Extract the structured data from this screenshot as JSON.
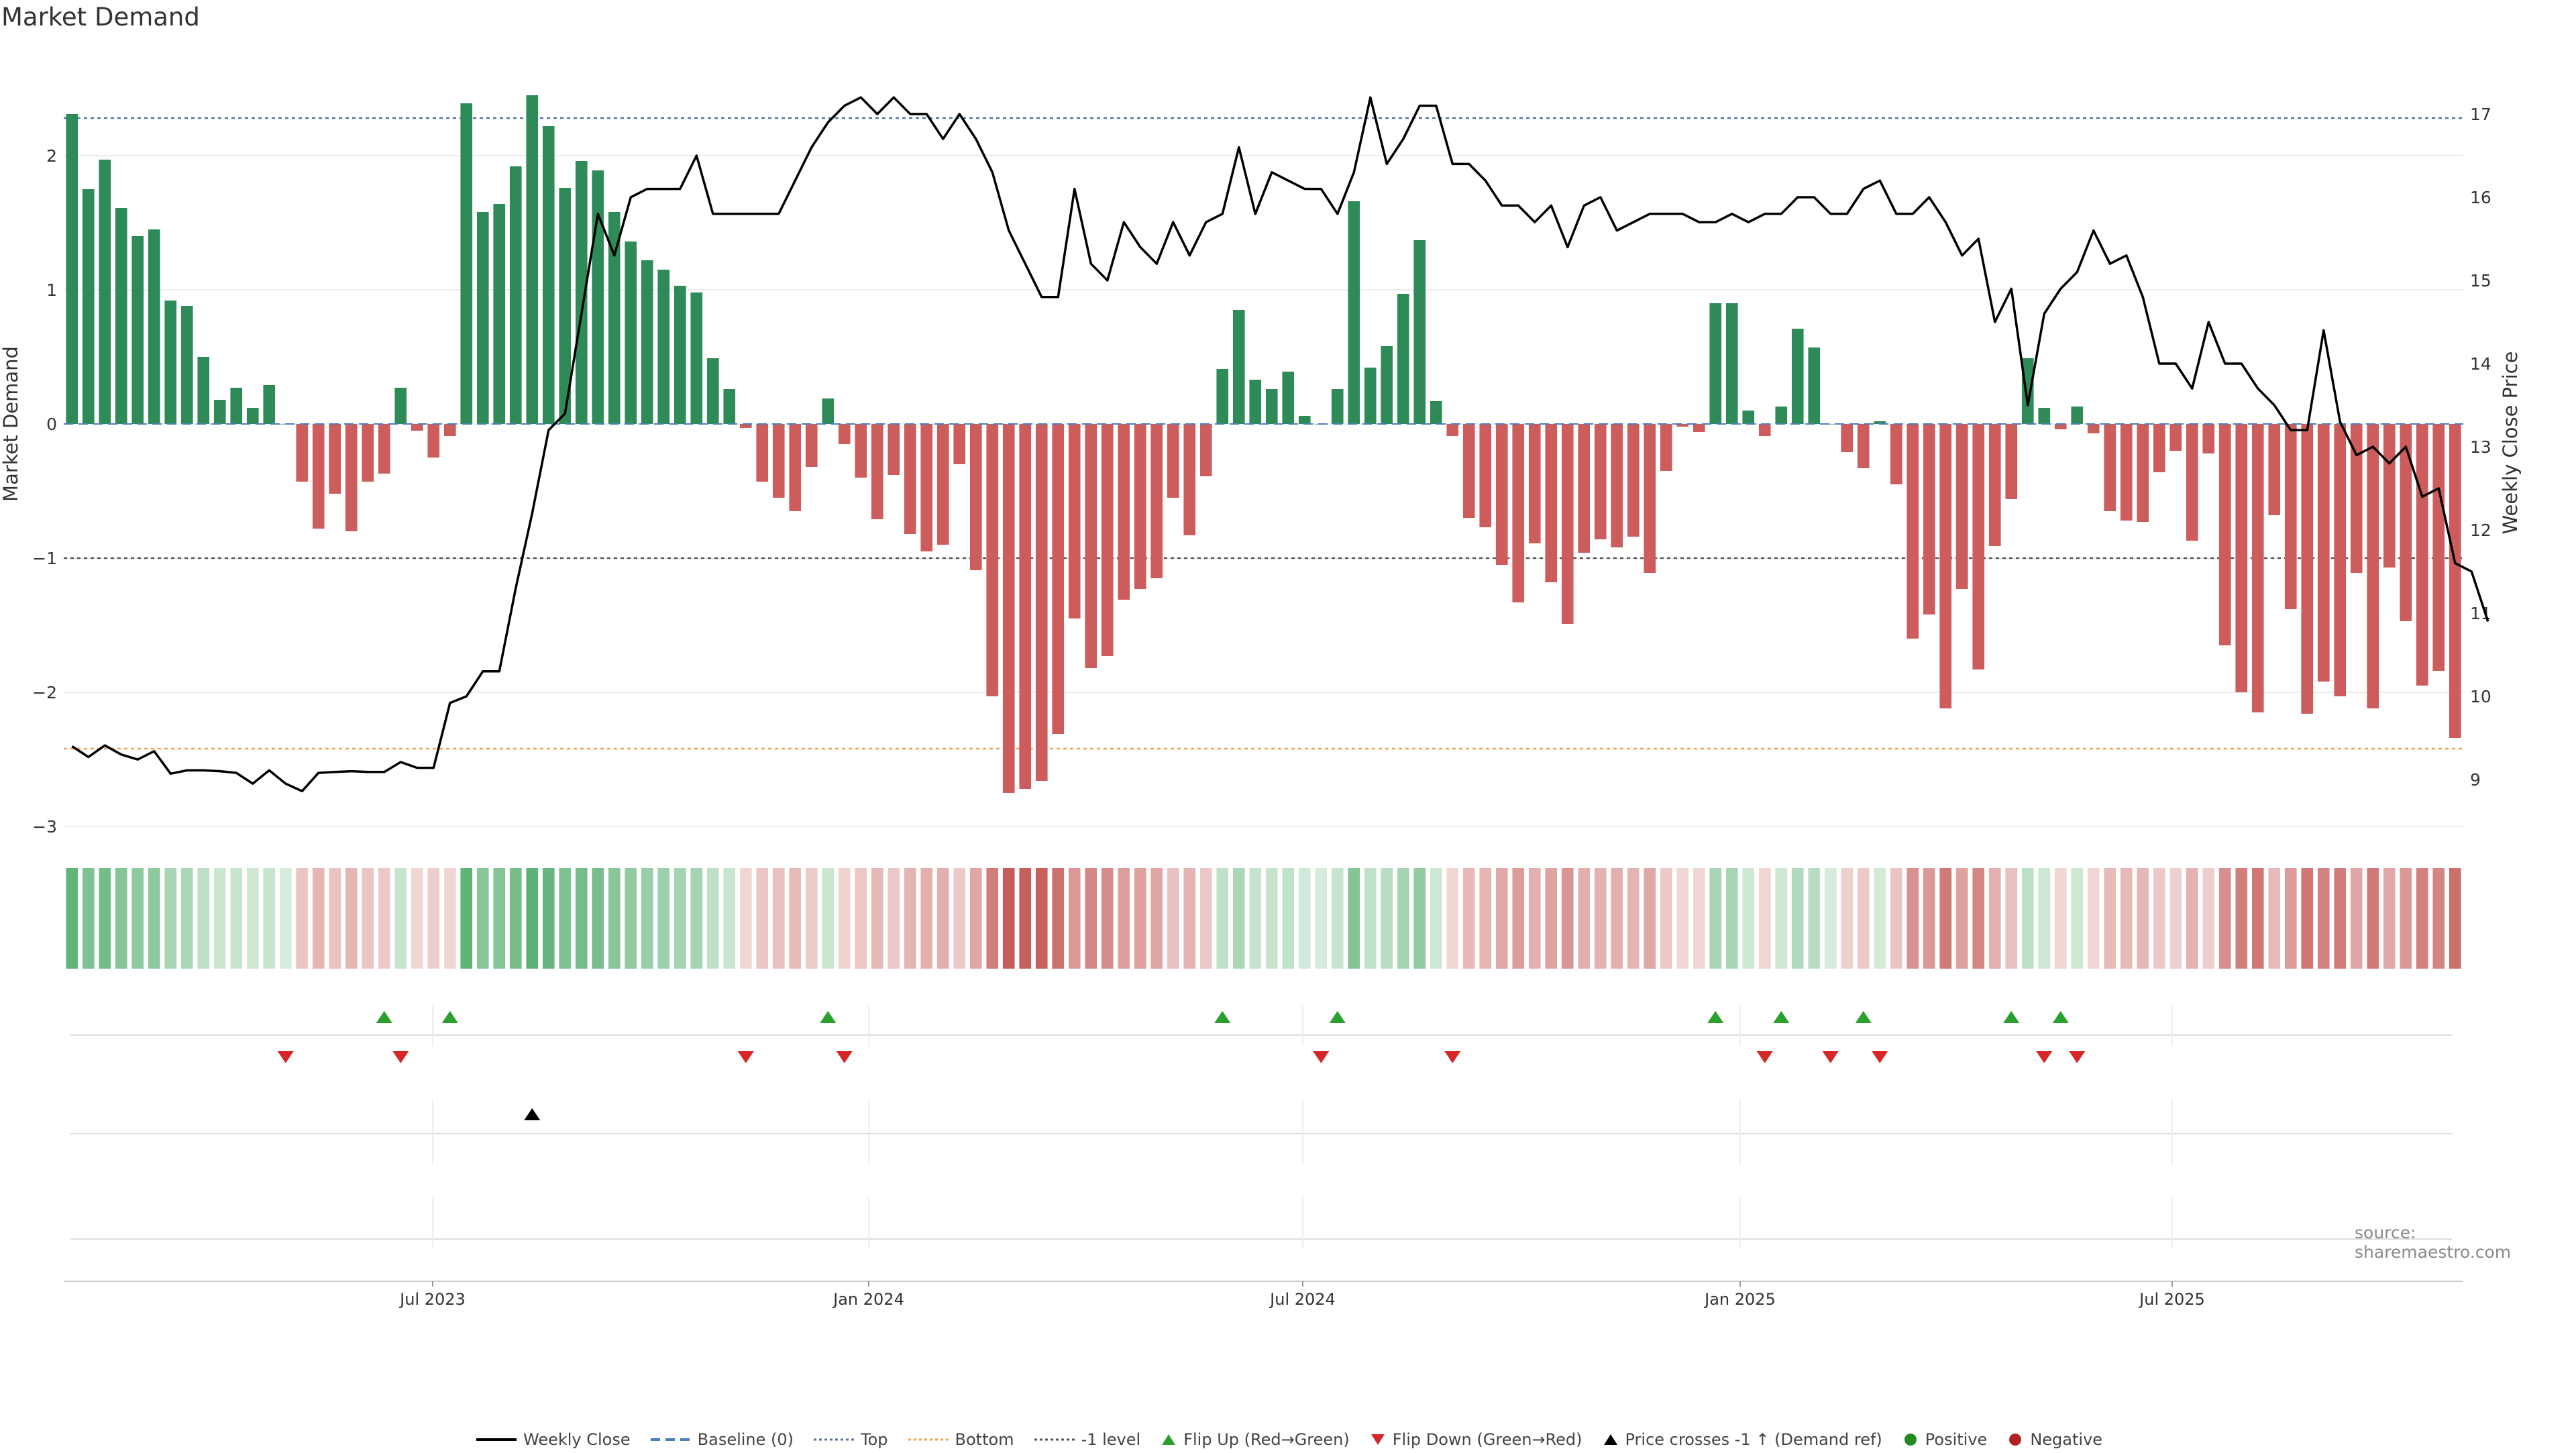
{
  "title": "Market Demand",
  "source": "source: sharemaestro.com",
  "colors": {
    "positive": "#2e8b57",
    "negative": "#cd5c5c",
    "price": "#000000",
    "top": "#5a6fa0",
    "bottom": "#f0a050",
    "minus1": "#555555",
    "flip_up": "#2ca02c",
    "flip_down": "#d62728",
    "cross": "#000000",
    "dot_pos": "#228b22",
    "dot_neg": "#b22222"
  },
  "legend": [
    {
      "label": "Weekly Close",
      "kind": "line-solid",
      "color": "#000000"
    },
    {
      "label": "Baseline (0)",
      "kind": "line-dash",
      "color": "#4a7fbf"
    },
    {
      "label": "Top",
      "kind": "line-dot",
      "color": "#5a6fa0"
    },
    {
      "label": "Bottom",
      "kind": "line-dot",
      "color": "#f0a050"
    },
    {
      "label": "-1 level",
      "kind": "line-dot",
      "color": "#555555"
    },
    {
      "label": "Flip Up (Red→Green)",
      "kind": "tri-up",
      "color": "#2ca02c"
    },
    {
      "label": "Flip Down (Green→Red)",
      "kind": "tri-down",
      "color": "#d62728"
    },
    {
      "label": "Price crosses -1 ↑ (Demand ref)",
      "kind": "tri-up",
      "color": "#000000"
    },
    {
      "label": "Positive",
      "kind": "dot",
      "color": "#228b22"
    },
    {
      "label": "Negative",
      "kind": "dot",
      "color": "#b22222"
    }
  ],
  "chart_data": {
    "type": "bar",
    "ylabel": "Market Demand",
    "y2label": "Weekly Close Price",
    "ylim": [
      -3,
      2.5
    ],
    "y2lim": [
      8.5,
      17.8
    ],
    "yticks": [
      "2",
      "1",
      "0",
      "−1",
      "−2",
      "−3"
    ],
    "y2ticks": [
      "17",
      "16",
      "15",
      "14",
      "13",
      "12",
      "11",
      "10",
      "9"
    ],
    "xticks": [
      "Jul 2023",
      "Jan 2024",
      "Jul 2024",
      "Jan 2025",
      "Jul 2025"
    ],
    "reference_lines": {
      "top": 2.28,
      "bottom": -2.42,
      "minus1": -1,
      "price_level_17": 17
    },
    "series": [
      {
        "name": "Weekly Close",
        "type": "line",
        "values": [
          9.4,
          9.27,
          9.41,
          9.3,
          9.24,
          9.34,
          9.07,
          9.11,
          9.11,
          9.1,
          9.08,
          8.95,
          9.11,
          8.95,
          8.86,
          9.08,
          9.09,
          9.1,
          9.09,
          9.09,
          9.21,
          9.14,
          9.14,
          9.92,
          10.0,
          10.3,
          10.3,
          11.3,
          12.2,
          13.2,
          13.4,
          14.6,
          15.8,
          15.3,
          16.0,
          16.1,
          16.1,
          16.1,
          16.5,
          15.8,
          15.8,
          15.8,
          15.8,
          15.8,
          16.2,
          16.6,
          16.9,
          17.1,
          17.2,
          17.0,
          17.2,
          17.0,
          17.0,
          16.7,
          17.0,
          16.7,
          16.3,
          15.6,
          15.2,
          14.8,
          14.8,
          16.1,
          15.2,
          15.0,
          15.7,
          15.4,
          15.2,
          15.7,
          15.3,
          15.7,
          15.8,
          16.6,
          15.8,
          16.3,
          16.2,
          16.1,
          16.1,
          15.8,
          16.3,
          17.2,
          16.4,
          16.7,
          17.1,
          17.1,
          16.4,
          16.4,
          16.2,
          15.9,
          15.9,
          15.7,
          15.9,
          15.4,
          15.9,
          16.0,
          15.6,
          15.7,
          15.8,
          15.8,
          15.8,
          15.7,
          15.7,
          15.8,
          15.7,
          15.8,
          15.8,
          16.0,
          16.0,
          15.8,
          15.8,
          16.1,
          16.2,
          15.8,
          15.8,
          16.0,
          15.7,
          15.3,
          15.5,
          14.5,
          14.9,
          13.5,
          14.6,
          14.9,
          15.1,
          15.6,
          15.2,
          15.3,
          14.8,
          14.0,
          14.0,
          13.7,
          14.5,
          14.0,
          14.0,
          13.7,
          13.5,
          13.2,
          13.2,
          14.4,
          13.3,
          12.9,
          13.0,
          12.8,
          13.0,
          12.4,
          12.5,
          11.6,
          11.5,
          10.9
        ]
      },
      {
        "name": "Market Demand",
        "type": "bar",
        "values": [
          2.31,
          1.75,
          1.97,
          1.61,
          1.4,
          1.45,
          0.92,
          0.88,
          0.5,
          0.18,
          0.27,
          0.12,
          0.29,
          0.0,
          -0.43,
          -0.78,
          -0.52,
          -0.8,
          -0.43,
          -0.37,
          0.27,
          -0.05,
          -0.25,
          -0.09,
          2.39,
          1.58,
          1.64,
          1.92,
          2.45,
          2.22,
          1.76,
          1.96,
          1.89,
          1.58,
          1.36,
          1.22,
          1.15,
          1.03,
          0.98,
          0.49,
          0.26,
          -0.03,
          -0.43,
          -0.55,
          -0.65,
          -0.32,
          0.19,
          -0.15,
          -0.4,
          -0.71,
          -0.38,
          -0.82,
          -0.95,
          -0.9,
          -0.3,
          -1.09,
          -2.03,
          -2.75,
          -2.72,
          -2.66,
          -2.31,
          -1.45,
          -1.82,
          -1.73,
          -1.31,
          -1.23,
          -1.15,
          -0.55,
          -0.83,
          -0.39,
          0.41,
          0.85,
          0.33,
          0.26,
          0.39,
          0.06,
          0.0,
          0.26,
          1.66,
          0.42,
          0.58,
          0.97,
          1.37,
          0.17,
          -0.09,
          -0.7,
          -0.77,
          -1.05,
          -1.33,
          -0.89,
          -1.18,
          -1.49,
          -0.96,
          -0.86,
          -0.92,
          -0.84,
          -1.11,
          -0.35,
          -0.02,
          -0.06,
          0.9,
          0.9,
          0.1,
          -0.09,
          0.13,
          0.71,
          0.57,
          0.0,
          -0.21,
          -0.33,
          0.02,
          -0.45,
          -1.6,
          -1.42,
          -2.12,
          -1.23,
          -1.83,
          -0.91,
          -0.56,
          0.49,
          0.12,
          -0.04,
          0.13,
          -0.07,
          -0.65,
          -0.72,
          -0.73,
          -0.36,
          -0.2,
          -0.87,
          -0.22,
          -1.65,
          -2.0,
          -2.15,
          -0.68,
          -1.38,
          -2.16,
          -1.92,
          -2.03,
          -1.11,
          -2.12,
          -1.07,
          -1.47,
          -1.95,
          -1.84,
          -2.34
        ]
      }
    ],
    "flip_up_weeks": [
      19,
      23,
      46,
      70,
      77,
      100,
      104,
      109,
      118,
      121
    ],
    "flip_down_weeks": [
      13,
      20,
      41,
      47,
      76,
      84,
      103,
      107,
      110,
      120,
      122
    ],
    "price_cross_weeks": [
      28
    ]
  }
}
